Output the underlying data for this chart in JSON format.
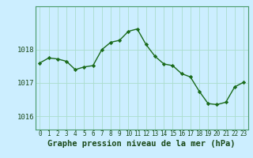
{
  "hours": [
    0,
    1,
    2,
    3,
    4,
    5,
    6,
    7,
    8,
    9,
    10,
    11,
    12,
    13,
    14,
    15,
    16,
    17,
    18,
    19,
    20,
    21,
    22,
    23
  ],
  "pressure": [
    1017.6,
    1017.75,
    1017.72,
    1017.65,
    1017.4,
    1017.48,
    1017.52,
    1018.0,
    1018.22,
    1018.28,
    1018.55,
    1018.62,
    1018.15,
    1017.8,
    1017.57,
    1017.52,
    1017.28,
    1017.18,
    1016.75,
    1016.38,
    1016.35,
    1016.42,
    1016.88,
    1017.02
  ],
  "line_color": "#1a6b1a",
  "marker_color": "#1a6b1a",
  "bg_color": "#cceeff",
  "grid_color": "#aaddcc",
  "axis_label_color": "#1a4a1a",
  "tick_color": "#1a4a1a",
  "border_color": "#4a9a6a",
  "yticks": [
    1016,
    1017,
    1018
  ],
  "ylim": [
    1015.6,
    1019.3
  ],
  "xlim": [
    -0.5,
    23.5
  ],
  "xlabel": "Graphe pression niveau de la mer (hPa)",
  "xlabel_fontsize": 7.5,
  "xlabel_fontweight": "bold",
  "tick_fontsize": 5.5,
  "ytick_fontsize": 6.5
}
